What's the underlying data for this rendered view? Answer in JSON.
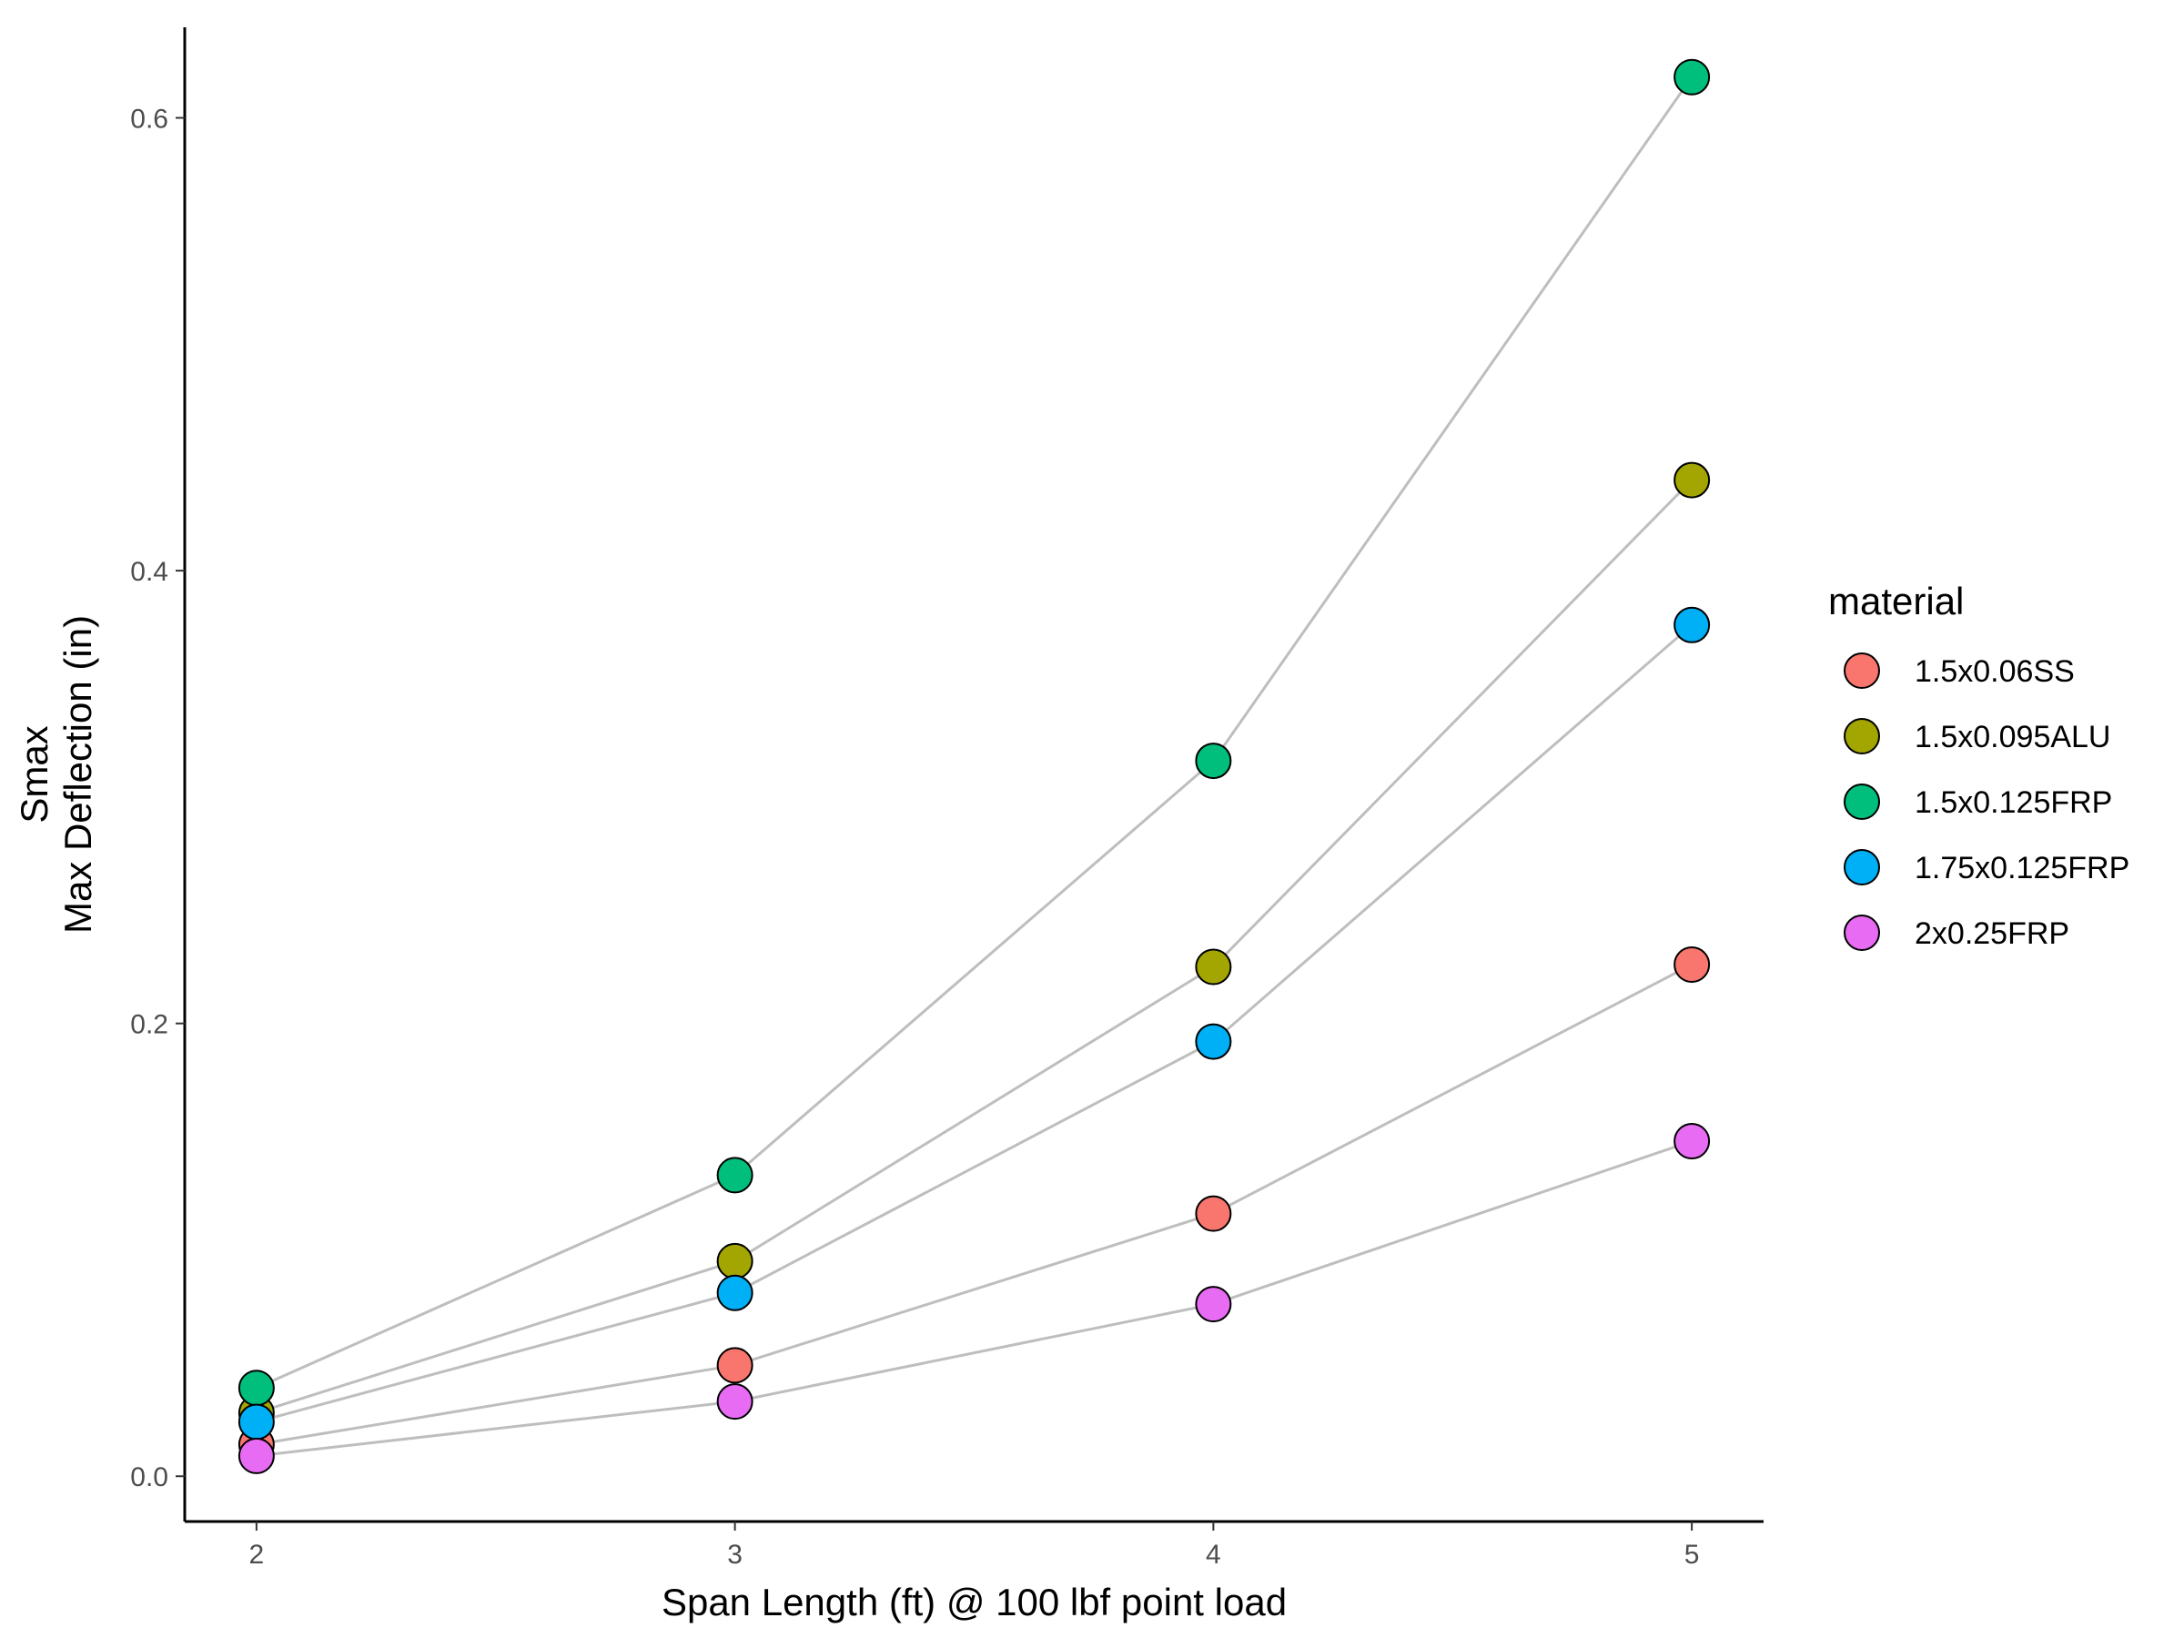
{
  "chart_data": {
    "type": "scatter",
    "xlabel": "Span Length (ft) @ 100 lbf point load",
    "ylabel_lines": [
      "Smax",
      "Max Deflection (in)"
    ],
    "xlim": [
      1.85,
      5.15
    ],
    "ylim": [
      -0.02,
      0.64
    ],
    "x_ticks": [
      2,
      3,
      4,
      5
    ],
    "x_tick_labels": [
      "2",
      "3",
      "4",
      "5"
    ],
    "y_ticks": [
      0.0,
      0.2,
      0.4,
      0.6
    ],
    "y_tick_labels": [
      "0.0",
      "0.2",
      "0.4",
      "0.6"
    ],
    "grid": false,
    "legend_title": "material",
    "legend_position": "right",
    "line_color": "#bebebe",
    "point_outline_color": "#000000",
    "series": [
      {
        "name": "1.5x0.06SS",
        "color": "#F8766D",
        "x": [
          2,
          3,
          4,
          5
        ],
        "y": [
          0.014,
          0.049,
          0.116,
          0.226
        ]
      },
      {
        "name": "1.5x0.095ALU",
        "color": "#A3A500",
        "x": [
          2,
          3,
          4,
          5
        ],
        "y": [
          0.028,
          0.095,
          0.225,
          0.44
        ]
      },
      {
        "name": "1.5x0.125FRP",
        "color": "#00BF7D",
        "x": [
          2,
          3,
          4,
          5
        ],
        "y": [
          0.039,
          0.133,
          0.316,
          0.618
        ]
      },
      {
        "name": "1.75x0.125FRP",
        "color": "#00B0F6",
        "x": [
          2,
          3,
          4,
          5
        ],
        "y": [
          0.024,
          0.081,
          0.192,
          0.376
        ]
      },
      {
        "name": "2x0.25FRP",
        "color": "#E76BF3",
        "x": [
          2,
          3,
          4,
          5
        ],
        "y": [
          0.009,
          0.033,
          0.076,
          0.148
        ]
      }
    ]
  }
}
